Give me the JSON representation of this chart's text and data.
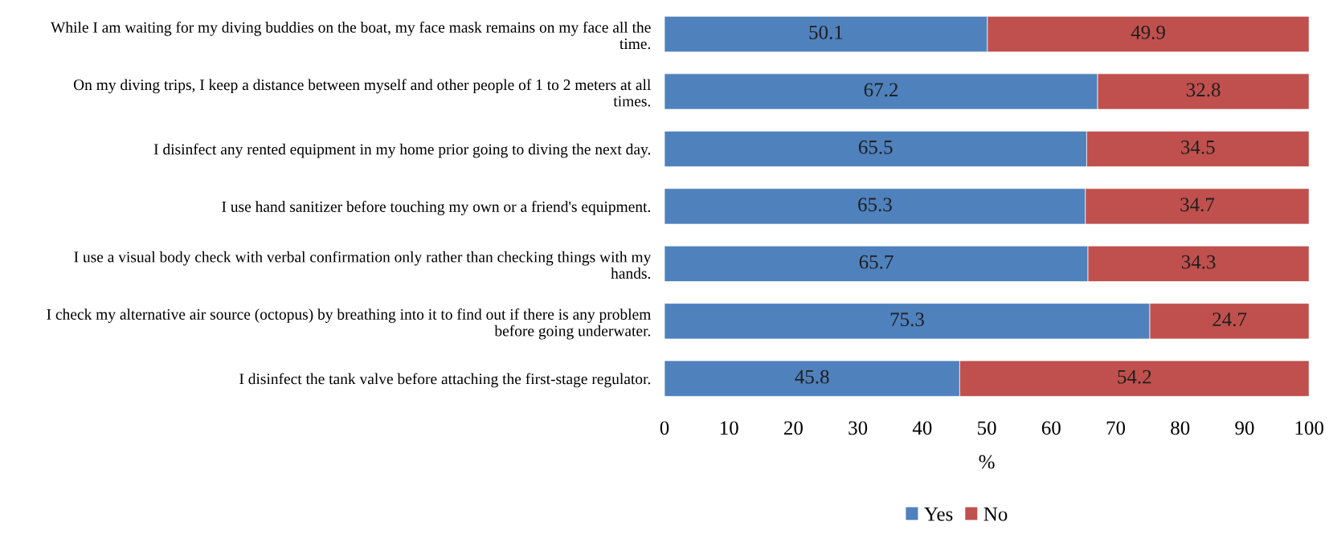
{
  "chart_data": {
    "type": "bar",
    "orientation": "horizontal",
    "stacked": true,
    "xlabel": "%",
    "categories": [
      "While I am waiting for my diving buddies on the boat, my face mask remains on my face all the time.",
      "On my diving trips, I keep a distance between myself and other people of 1 to 2 meters at all times.",
      "I disinfect any rented equipment in my home prior going to diving the next day.",
      "I use hand sanitizer before touching my own or a friend's equipment.",
      "I use a visual body check with verbal confirmation only rather than checking things with my hands.",
      "I check my alternative air source (octopus) by breathing into it to find out if there is any problem before going underwater.",
      "I disinfect the tank valve before attaching the first-stage regulator."
    ],
    "series": [
      {
        "name": "Yes",
        "color": "#4f81bd",
        "values": [
          50.1,
          67.2,
          65.5,
          65.3,
          65.7,
          75.3,
          45.8
        ]
      },
      {
        "name": "No",
        "color": "#c0504d",
        "values": [
          49.9,
          32.8,
          34.5,
          34.7,
          34.3,
          24.7,
          54.2
        ]
      }
    ],
    "xlim": [
      0,
      100
    ],
    "xticks": [
      0,
      10,
      20,
      30,
      40,
      50,
      60,
      70,
      80,
      90,
      100
    ],
    "data_labels": true,
    "legend": "bottom",
    "grid": false
  }
}
